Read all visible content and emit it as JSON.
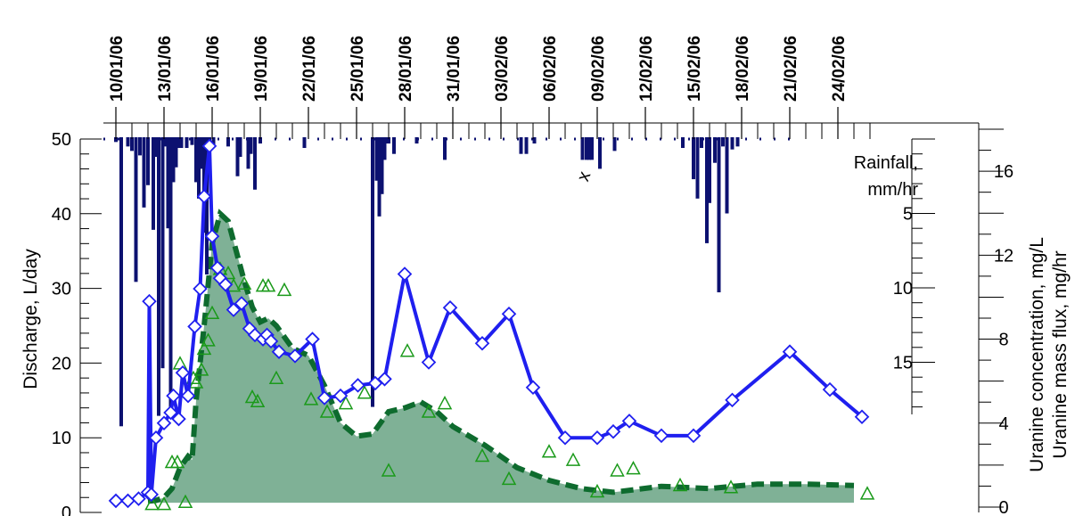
{
  "chart_data": {
    "type": "line",
    "x_unit": "date",
    "date_ticks": [
      "10/01/06",
      "13/01/06",
      "16/01/06",
      "19/01/06",
      "22/01/06",
      "25/01/06",
      "28/01/06",
      "31/01/06",
      "03/02/06",
      "06/02/06",
      "09/02/06",
      "12/02/06",
      "15/02/06",
      "18/02/06",
      "21/02/06",
      "24/02/06"
    ],
    "left_axis": {
      "label": "Discharge, L/day",
      "range": [
        0,
        50
      ],
      "ticks": [
        "0",
        "10",
        "20",
        "30",
        "40",
        "50"
      ]
    },
    "right_axis": {
      "label_line1": "Uranine concentration, mg/L",
      "label_line2": "Uranine mass flux, mg/hr",
      "range": [
        0,
        18
      ],
      "ticks": [
        "0",
        "4",
        "8",
        "12",
        "16"
      ]
    },
    "rain_axis": {
      "label_line1": "Rainfall,",
      "label_line2": "mm/hr",
      "ticks": [
        "5",
        "10",
        "15"
      ],
      "inverted": true
    },
    "annotation": "x",
    "colors": {
      "concentration": "#1f1fef",
      "discharge_fill": "#7fb196",
      "discharge_line": "#0e6b2e",
      "flux": "#1a9a1a",
      "rain": "#0c1170"
    },
    "series": [
      {
        "name": "",
        "kind": "concentration",
        "axis": "right",
        "x": [
          "10/01/06 00:00",
          "10/01/06 18:00",
          "11/01/06 10:00",
          "12/01/06 00:00",
          "12/01/06 02:00",
          "12/01/06 05:00",
          "12/01/06 12:00",
          "13/01/06 00:00",
          "13/01/06 10:00",
          "13/01/06 14:00",
          "13/01/06 22:00",
          "14/01/06 04:00",
          "14/01/06 12:00",
          "14/01/06 22:00",
          "15/01/06 06:00",
          "15/01/06 12:00",
          "15/01/06 20:00",
          "16/01/06 00:00",
          "16/01/06 08:00",
          "16/01/06 12:00",
          "16/01/06 20:00",
          "17/01/06 08:00",
          "17/01/06 20:00",
          "18/01/06 08:00",
          "18/01/06 16:00",
          "19/01/06 04:00",
          "19/01/06 10:00",
          "19/01/06 16:00",
          "20/01/06 04:00",
          "21/01/06 04:00",
          "22/01/06 06:00",
          "23/01/06 00:00",
          "24/01/06 00:00",
          "25/01/06 02:00",
          "26/01/06 04:00",
          "26/01/06 18:00",
          "28/01/06 00:00",
          "29/01/06 12:00",
          "30/01/06 20:00",
          "01/02/06 20:00",
          "03/02/06 12:00",
          "05/02/06 00:00",
          "07/02/06 00:00",
          "09/02/06 00:00",
          "10/02/06 00:00",
          "11/02/06 00:00",
          "13/02/06 00:00",
          "15/02/06 00:00",
          "17/02/06 10:00",
          "21/02/06 00:00",
          "23/02/06 12:00",
          "25/02/06 12:00"
        ],
        "y": [
          0.3,
          0.3,
          0.4,
          0.7,
          9.8,
          0.6,
          3.3,
          4.0,
          4.5,
          5.3,
          4.2,
          6.4,
          5.3,
          8.6,
          10.4,
          14.8,
          17.2,
          12.9,
          11.4,
          10.9,
          10.6,
          9.4,
          9.7,
          8.5,
          8.2,
          8.0,
          8.2,
          7.9,
          7.4,
          7.2,
          8.0,
          5.2,
          5.3,
          5.8,
          5.9,
          6.1,
          11.1,
          6.9,
          9.5,
          7.8,
          9.2,
          5.7,
          3.3,
          3.3,
          3.6,
          4.1,
          3.4,
          3.4,
          5.1,
          7.4,
          5.6,
          4.3
        ]
      },
      {
        "name": "",
        "kind": "discharge",
        "axis": "left",
        "x": [
          "12/01/06 00:00",
          "12/01/06 12:00",
          "13/01/06 00:00",
          "13/01/06 12:00",
          "14/01/06 00:00",
          "14/01/06 12:00",
          "14/01/06 18:00",
          "15/01/06 00:00",
          "15/01/06 12:00",
          "16/01/06 00:00",
          "16/01/06 12:00",
          "17/01/06 00:00",
          "17/01/06 12:00",
          "18/01/06 00:00",
          "18/01/06 12:00",
          "19/01/06 00:00",
          "19/01/06 12:00",
          "20/01/06 00:00",
          "21/01/06 00:00",
          "22/01/06 00:00",
          "23/01/06 00:00",
          "24/01/06 00:00",
          "25/01/06 00:00",
          "26/01/06 00:00",
          "27/01/06 00:00",
          "28/01/06 00:00",
          "29/01/06 00:00",
          "30/01/06 00:00",
          "31/01/06 00:00",
          "02/02/06 00:00",
          "04/02/06 00:00",
          "06/02/06 00:00",
          "08/02/06 00:00",
          "10/02/06 00:00",
          "13/02/06 00:00",
          "16/02/06 00:00",
          "19/02/06 00:00",
          "22/02/06 00:00",
          "25/02/06 00:00"
        ],
        "y": [
          1.5,
          1.6,
          2.0,
          3.2,
          6.0,
          7.5,
          7.0,
          15.0,
          25.0,
          36.0,
          40.0,
          39.0,
          35.0,
          31.0,
          27.5,
          25.5,
          26.0,
          25.0,
          22.0,
          21.0,
          17.0,
          12.0,
          10.2,
          10.5,
          13.5,
          14.0,
          14.8,
          13.5,
          11.5,
          9.0,
          6.0,
          4.3,
          3.2,
          2.7,
          3.5,
          3.2,
          3.8,
          3.8,
          3.6
        ]
      },
      {
        "name": "",
        "kind": "mass_flux",
        "axis": "right",
        "x": [
          "12/01/06 06:00",
          "13/01/06 00:00",
          "13/01/06 12:00",
          "13/01/06 20:00",
          "14/01/06 00:00",
          "14/01/06 08:00",
          "14/01/06 20:00",
          "15/01/06 00:00",
          "15/01/06 08:00",
          "15/01/06 12:00",
          "15/01/06 18:00",
          "16/01/06 00:00",
          "16/01/06 12:00",
          "17/01/06 00:00",
          "17/01/06 08:00",
          "18/01/06 00:00",
          "18/01/06 12:00",
          "18/01/06 20:00",
          "19/01/06 04:00",
          "19/01/06 12:00",
          "20/01/06 00:00",
          "20/01/06 12:00",
          "22/01/06 04:00",
          "23/01/06 04:00",
          "24/01/06 08:00",
          "25/01/06 12:00",
          "27/01/06 00:00",
          "28/01/06 04:00",
          "29/01/06 12:00",
          "30/01/06 12:00",
          "01/02/06 20:00",
          "03/02/06 12:00",
          "06/02/06 00:00",
          "07/02/06 12:00",
          "09/02/06 00:00",
          "10/02/06 06:00",
          "11/02/06 06:00",
          "14/02/06 04:00",
          "17/02/06 08:00",
          "25/02/06 20:00"
        ],
        "y": [
          0.1,
          0.1,
          2.1,
          2.1,
          6.8,
          0.2,
          6.1,
          5.9,
          6.5,
          7.5,
          7.9,
          9.2,
          11.3,
          11.1,
          10.5,
          10.6,
          5.2,
          5.0,
          10.5,
          10.5,
          6.1,
          10.3,
          5.1,
          4.5,
          4.9,
          5.4,
          1.7,
          7.4,
          4.5,
          4.9,
          2.4,
          1.3,
          2.6,
          2.2,
          0.7,
          1.7,
          1.8,
          1.0,
          0.9,
          0.6
        ]
      },
      {
        "name": "",
        "kind": "rainfall",
        "axis": "rain",
        "x": [
          "10/01/06 00:00",
          "10/01/06 08:00",
          "10/01/06 18:00",
          "11/01/06 00:00",
          "11/01/06 06:00",
          "11/01/06 12:00",
          "11/01/06 18:00",
          "12/01/06 00:00",
          "12/01/06 08:00",
          "12/01/06 12:00",
          "12/01/06 16:00",
          "12/01/06 22:00",
          "13/01/06 02:00",
          "13/01/06 06:00",
          "13/01/06 10:00",
          "13/01/06 14:00",
          "13/01/06 18:00",
          "13/01/06 22:00",
          "14/01/06 02:00",
          "14/01/06 10:00",
          "14/01/06 18:00",
          "15/01/06 00:00",
          "15/01/06 04:00",
          "15/01/06 08:00",
          "15/01/06 12:00",
          "15/01/06 16:00",
          "15/01/06 20:00",
          "16/01/06 02:00",
          "17/01/06 00:00",
          "17/01/06 14:00",
          "17/01/06 18:00",
          "18/01/06 06:00",
          "18/01/06 10:00",
          "18/01/06 16:00",
          "19/01/06 00:00",
          "21/01/06 18:00",
          "26/01/06 00:00",
          "26/01/06 06:00",
          "26/01/06 10:00",
          "26/01/06 14:00",
          "26/01/06 18:00",
          "26/01/06 22:00",
          "27/01/06 00:00",
          "27/01/06 08:00",
          "28/01/06 18:00",
          "30/01/06 12:00",
          "04/02/06 06:00",
          "04/02/06 14:00",
          "05/02/06 02:00",
          "08/02/06 02:00",
          "08/02/06 08:00",
          "08/02/06 12:00",
          "08/02/06 16:00",
          "09/02/06 04:00",
          "10/02/06 02:00",
          "14/02/06 08:00",
          "15/02/06 00:00",
          "15/02/06 06:00",
          "15/02/06 12:00",
          "15/02/06 20:00",
          "16/02/06 00:00",
          "16/02/06 08:00",
          "16/02/06 14:00",
          "16/02/06 20:00",
          "17/02/06 02:00",
          "17/02/06 10:00",
          "17/02/06 18:00"
        ],
        "y": [
          0.2,
          19.3,
          0.5,
          0.8,
          9.6,
          1.1,
          4.6,
          3.1,
          6.1,
          1.2,
          18.6,
          15.4,
          0.5,
          6.0,
          18.2,
          2.9,
          1.9,
          0.6,
          0.6,
          0.6,
          0.4,
          2.9,
          4.0,
          2.0,
          6.3,
          9.1,
          2.5,
          0.4,
          0.5,
          2.5,
          1.2,
          2.0,
          1.0,
          3.4,
          0.3,
          0.6,
          18.0,
          2.8,
          5.2,
          3.7,
          1.4,
          0.3,
          0.3,
          1.0,
          0.3,
          1.4,
          1.0,
          1.0,
          0.3,
          1.4,
          1.4,
          1.4,
          1.4,
          2.0,
          0.8,
          0.6,
          2.7,
          4.0,
          0.6,
          7.0,
          4.3,
          1.6,
          10.3,
          0.5,
          5.0,
          0.7,
          0.5
        ]
      }
    ]
  }
}
